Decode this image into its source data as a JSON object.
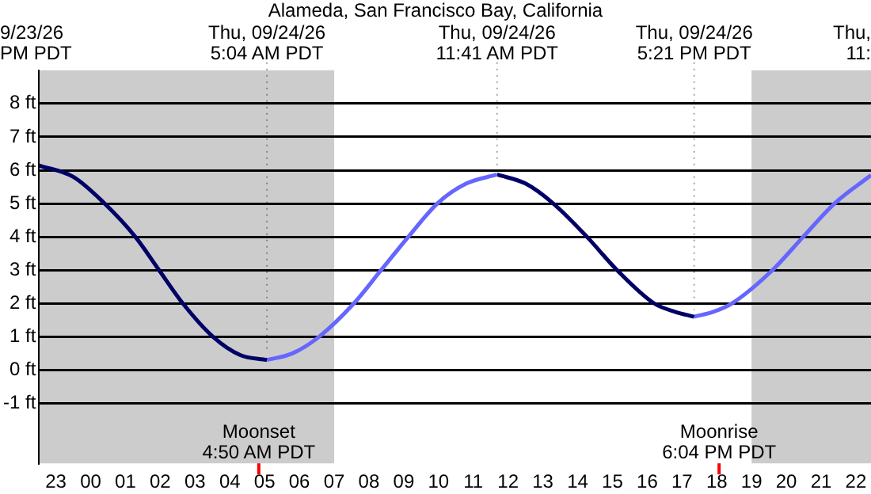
{
  "chart_data": {
    "type": "line",
    "title": "Alameda, San Francisco Bay, California",
    "series": [
      {
        "color": "#000066",
        "x": [
          "--09-23T22:31",
          "--09-23T23:30",
          "--09-24T00:24",
          "--09-24T01:17",
          "--09-24T01:58",
          "--09-24T02:39",
          "--09-24T03:31",
          "--09-24T04:18",
          "--09-24T05:04"
        ],
        "values": [
          6.14,
          5.8,
          5,
          4,
          3,
          2,
          1,
          0.45,
          0.3
        ]
      },
      {
        "color": "#6666ff",
        "x": [
          "--09-24T05:04",
          "--09-24T05:48",
          "--09-24T06:34",
          "--09-24T07:34",
          "--09-24T08:21",
          "--09-24T09:08",
          "--09-24T09:58",
          "--09-24T10:48",
          "--09-24T11:41"
        ],
        "values": [
          0.3,
          0.5,
          1,
          2,
          3,
          4,
          5,
          5.6,
          5.87
        ]
      },
      {
        "color": "#000066",
        "x": [
          "--09-24T11:41",
          "--09-24T12:30",
          "--09-24T13:18",
          "--09-24T14:16",
          "--09-24T15:08",
          "--09-24T16:12",
          "--09-24T16:48",
          "--09-24T17:21"
        ],
        "values": [
          5.87,
          5.6,
          5,
          4,
          3,
          2,
          1.75,
          1.6
        ]
      },
      {
        "color": "#6666ff",
        "x": [
          "--09-24T17:21",
          "--09-24T17:54",
          "--09-24T18:26",
          "--09-24T19:36",
          "--09-24T20:29",
          "--09-24T21:23",
          "--09-24T22:26"
        ],
        "values": [
          1.6,
          1.75,
          2,
          3,
          4,
          5,
          5.85
        ]
      }
    ],
    "xlim": [
      "--09-23T22:31",
      "--09-24T22:26"
    ],
    "xticks": [
      {
        "value": "--09-23T23:00",
        "label": "23"
      },
      {
        "value": "--09-24T00:00",
        "label": "00"
      },
      {
        "value": "--09-24T01:00",
        "label": "01"
      },
      {
        "value": "--09-24T02:00",
        "label": "02"
      },
      {
        "value": "--09-24T03:00",
        "label": "03"
      },
      {
        "value": "--09-24T04:00",
        "label": "04"
      },
      {
        "value": "--09-24T05:00",
        "label": "05"
      },
      {
        "value": "--09-24T06:00",
        "label": "06"
      },
      {
        "value": "--09-24T07:00",
        "label": "07"
      },
      {
        "value": "--09-24T08:00",
        "label": "08"
      },
      {
        "value": "--09-24T09:00",
        "label": "09"
      },
      {
        "value": "--09-24T10:00",
        "label": "10"
      },
      {
        "value": "--09-24T11:00",
        "label": "11"
      },
      {
        "value": "--09-24T12:00",
        "label": "12"
      },
      {
        "value": "--09-24T13:00",
        "label": "13"
      },
      {
        "value": "--09-24T14:00",
        "label": "14"
      },
      {
        "value": "--09-24T15:00",
        "label": "15"
      },
      {
        "value": "--09-24T16:00",
        "label": "16"
      },
      {
        "value": "--09-24T17:00",
        "label": "17"
      },
      {
        "value": "--09-24T18:00",
        "label": "18"
      },
      {
        "value": "--09-24T19:00",
        "label": "19"
      },
      {
        "value": "--09-24T20:00",
        "label": "20"
      },
      {
        "value": "--09-24T21:00",
        "label": "21"
      },
      {
        "value": "--09-24T22:00",
        "label": "22"
      }
    ],
    "ylim": [
      -2.8,
      9
    ],
    "yticks": [
      {
        "value": -1,
        "label": "-1 ft"
      },
      {
        "value": 0,
        "label": "0 ft"
      },
      {
        "value": 1,
        "label": "1 ft"
      },
      {
        "value": 2,
        "label": "2 ft"
      },
      {
        "value": 3,
        "label": "3 ft"
      },
      {
        "value": 4,
        "label": "4 ft"
      },
      {
        "value": 5,
        "label": "5 ft"
      },
      {
        "value": 6,
        "label": "6 ft"
      },
      {
        "value": 7,
        "label": "7 ft"
      },
      {
        "value": 8,
        "label": "8 ft"
      }
    ],
    "grid": "y",
    "legend": false,
    "marker": "none",
    "line_style": "solid",
    "bands": [
      {
        "axis": "x",
        "from": "--09-23T22:31",
        "to": "--09-24T07:00",
        "color": "#cccccc"
      },
      {
        "axis": "x",
        "from": "--09-24T19:00",
        "to": "--09-24T22:26",
        "color": "#cccccc"
      }
    ],
    "ref_lines": [
      {
        "axis": "x",
        "value": "--09-24T04:50",
        "label": "Moonset\n4:50 AM PDT",
        "color": "#ff0000"
      },
      {
        "axis": "x",
        "value": "--09-24T18:04",
        "label": "Moonrise\n6:04 PM PDT",
        "color": "#ff0000"
      }
    ],
    "annotations": [
      "9/23/26\nPM PDT",
      {
        "text": "Thu, 09/24/26\n5:04 AM PDT",
        "x": "--09-24T05:04",
        "y": 0.3
      },
      {
        "text": "Thu, 09/24/26\n11:41 AM PDT",
        "x": "--09-24T11:41",
        "y": 5.87
      },
      {
        "text": "Thu, 09/24/26\n5:21 PM PDT",
        "x": "--09-24T17:21",
        "y": 1.6
      },
      "Thu,\n11:"
    ]
  }
}
